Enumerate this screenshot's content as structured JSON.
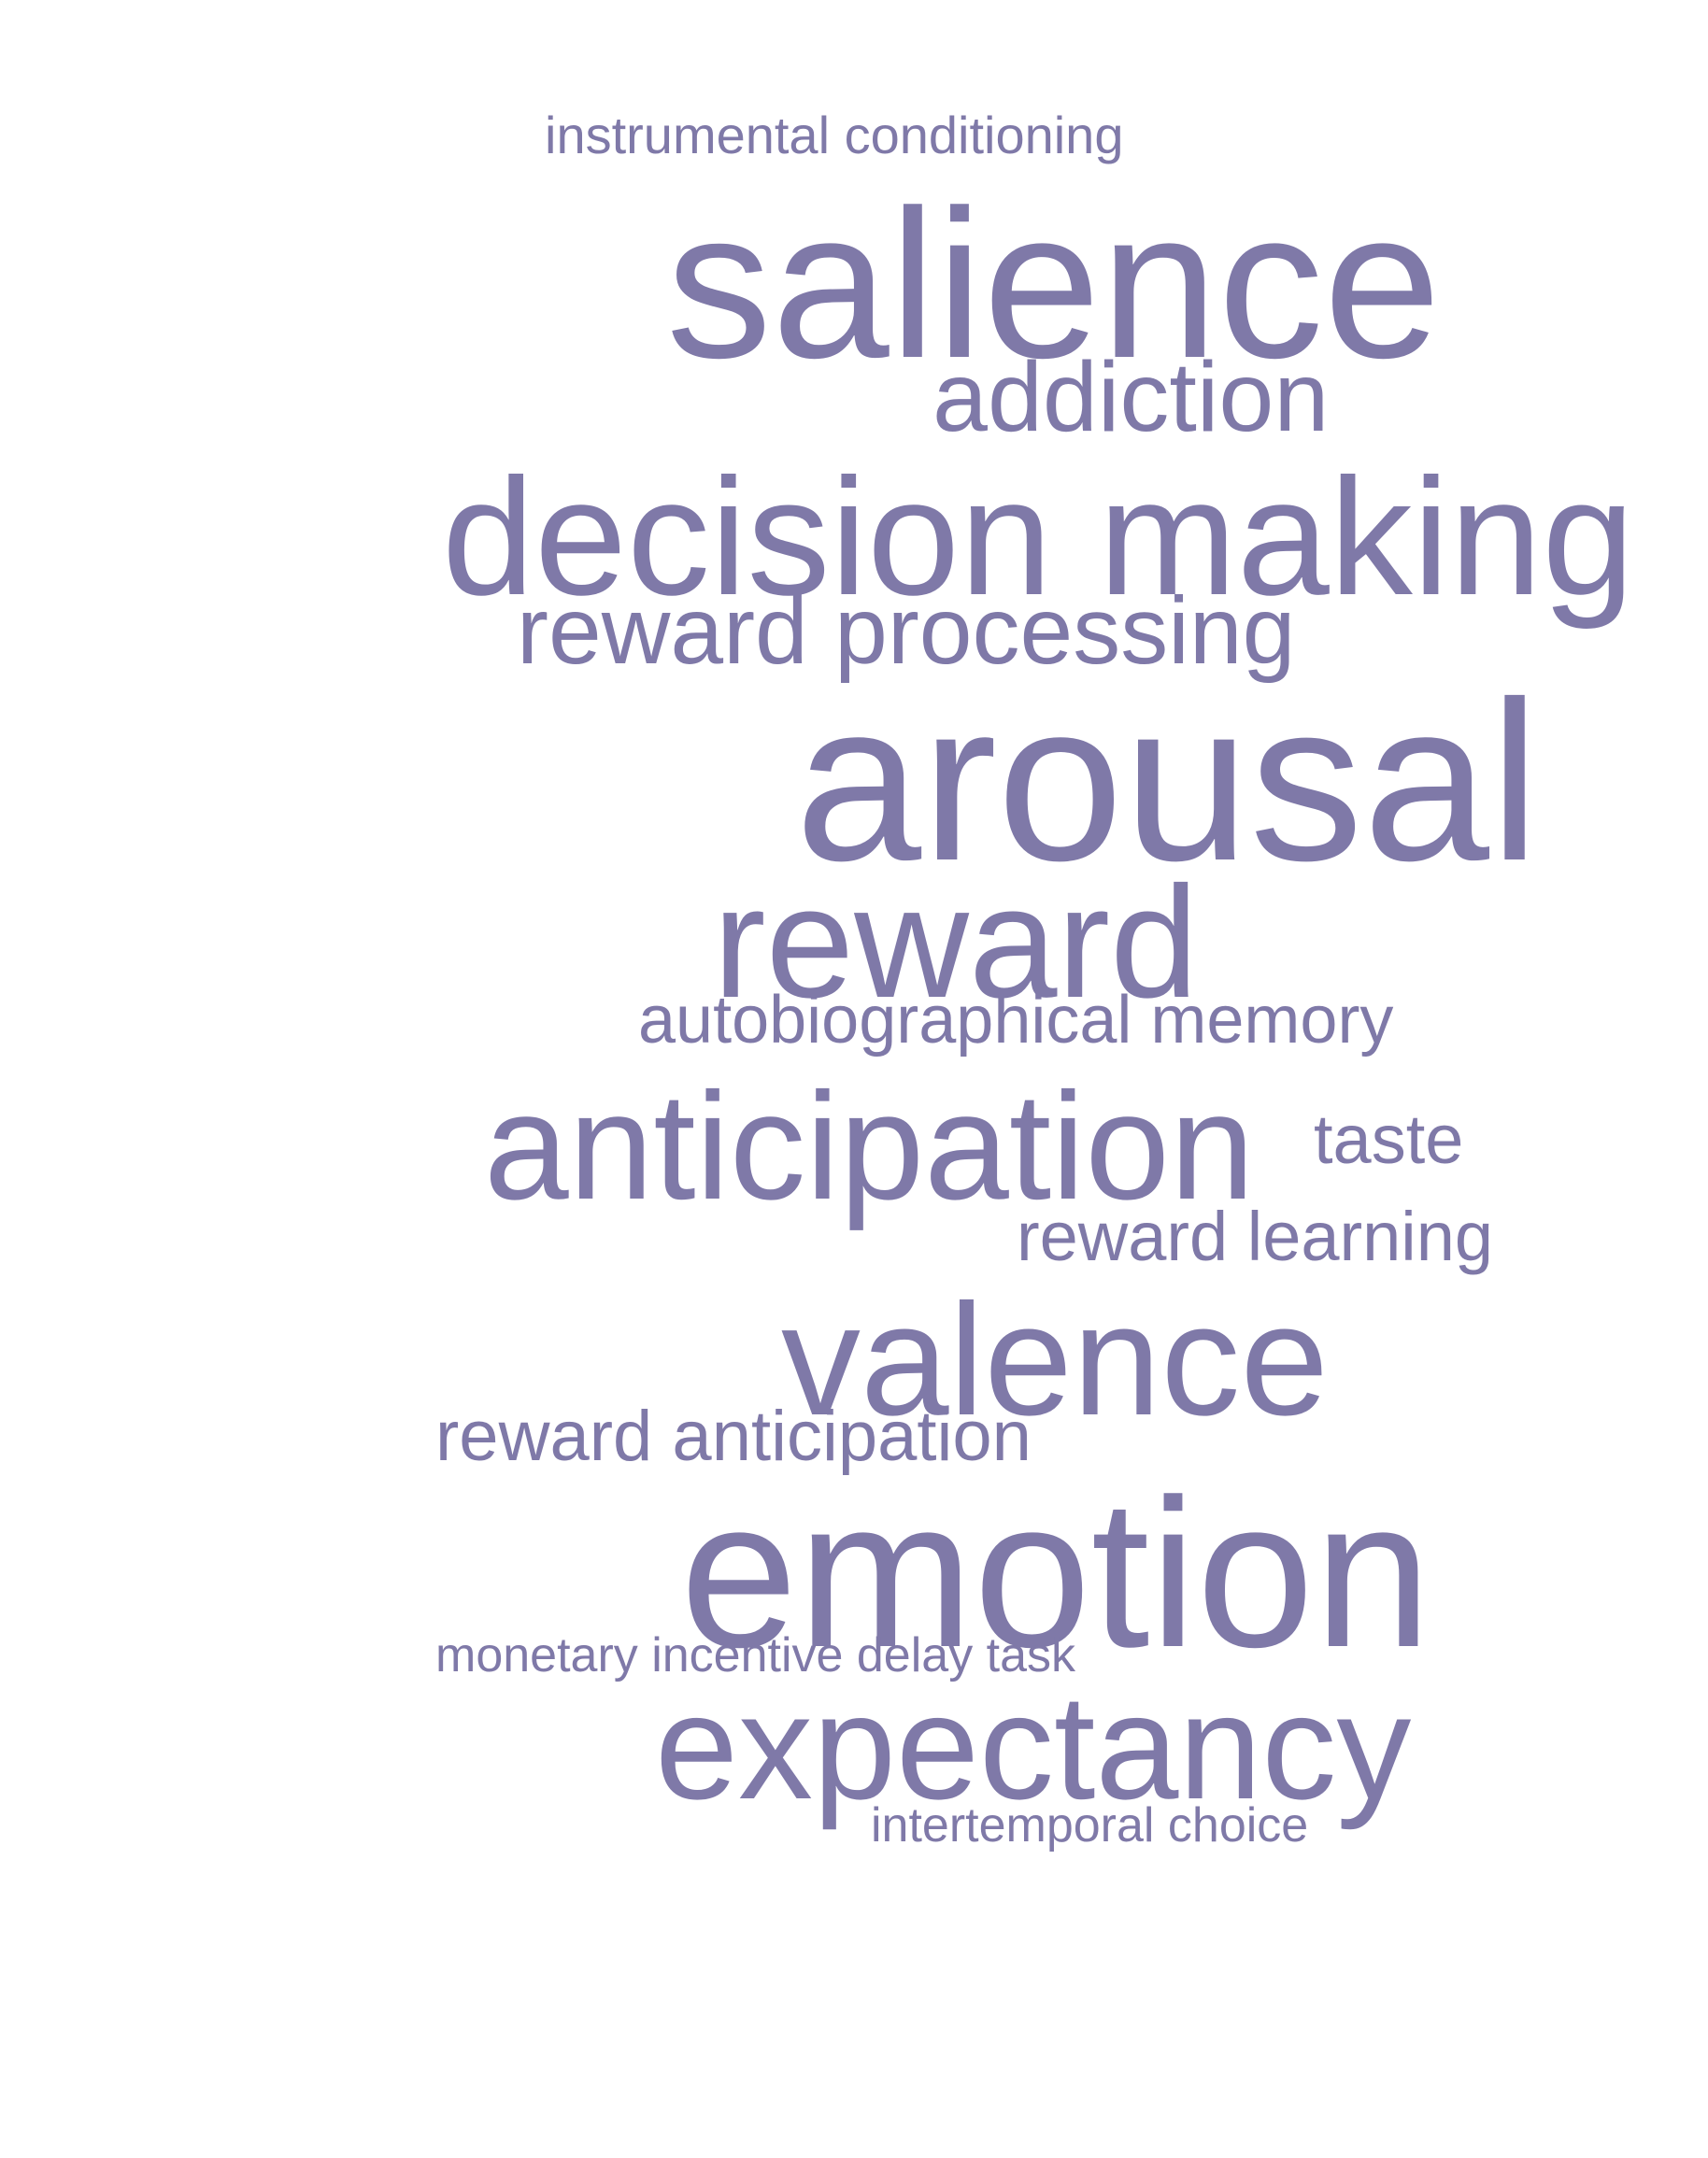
{
  "wordcloud": {
    "color": "#7f79a8",
    "words": [
      {
        "text": "instrumental conditioning"
      },
      {
        "text": "salience"
      },
      {
        "text": "addiction"
      },
      {
        "text": "decision making"
      },
      {
        "text": "reward processing"
      },
      {
        "text": "arousal"
      },
      {
        "text": "reward"
      },
      {
        "text": "autobiographical memory"
      },
      {
        "text": "anticipation"
      },
      {
        "text": "taste"
      },
      {
        "text": "reward learning"
      },
      {
        "text": "valence"
      },
      {
        "text": "reward anticipation"
      },
      {
        "text": "emotion"
      },
      {
        "text": "monetary incentive delay task"
      },
      {
        "text": "expectancy"
      },
      {
        "text": "intertemporal choice"
      }
    ]
  }
}
